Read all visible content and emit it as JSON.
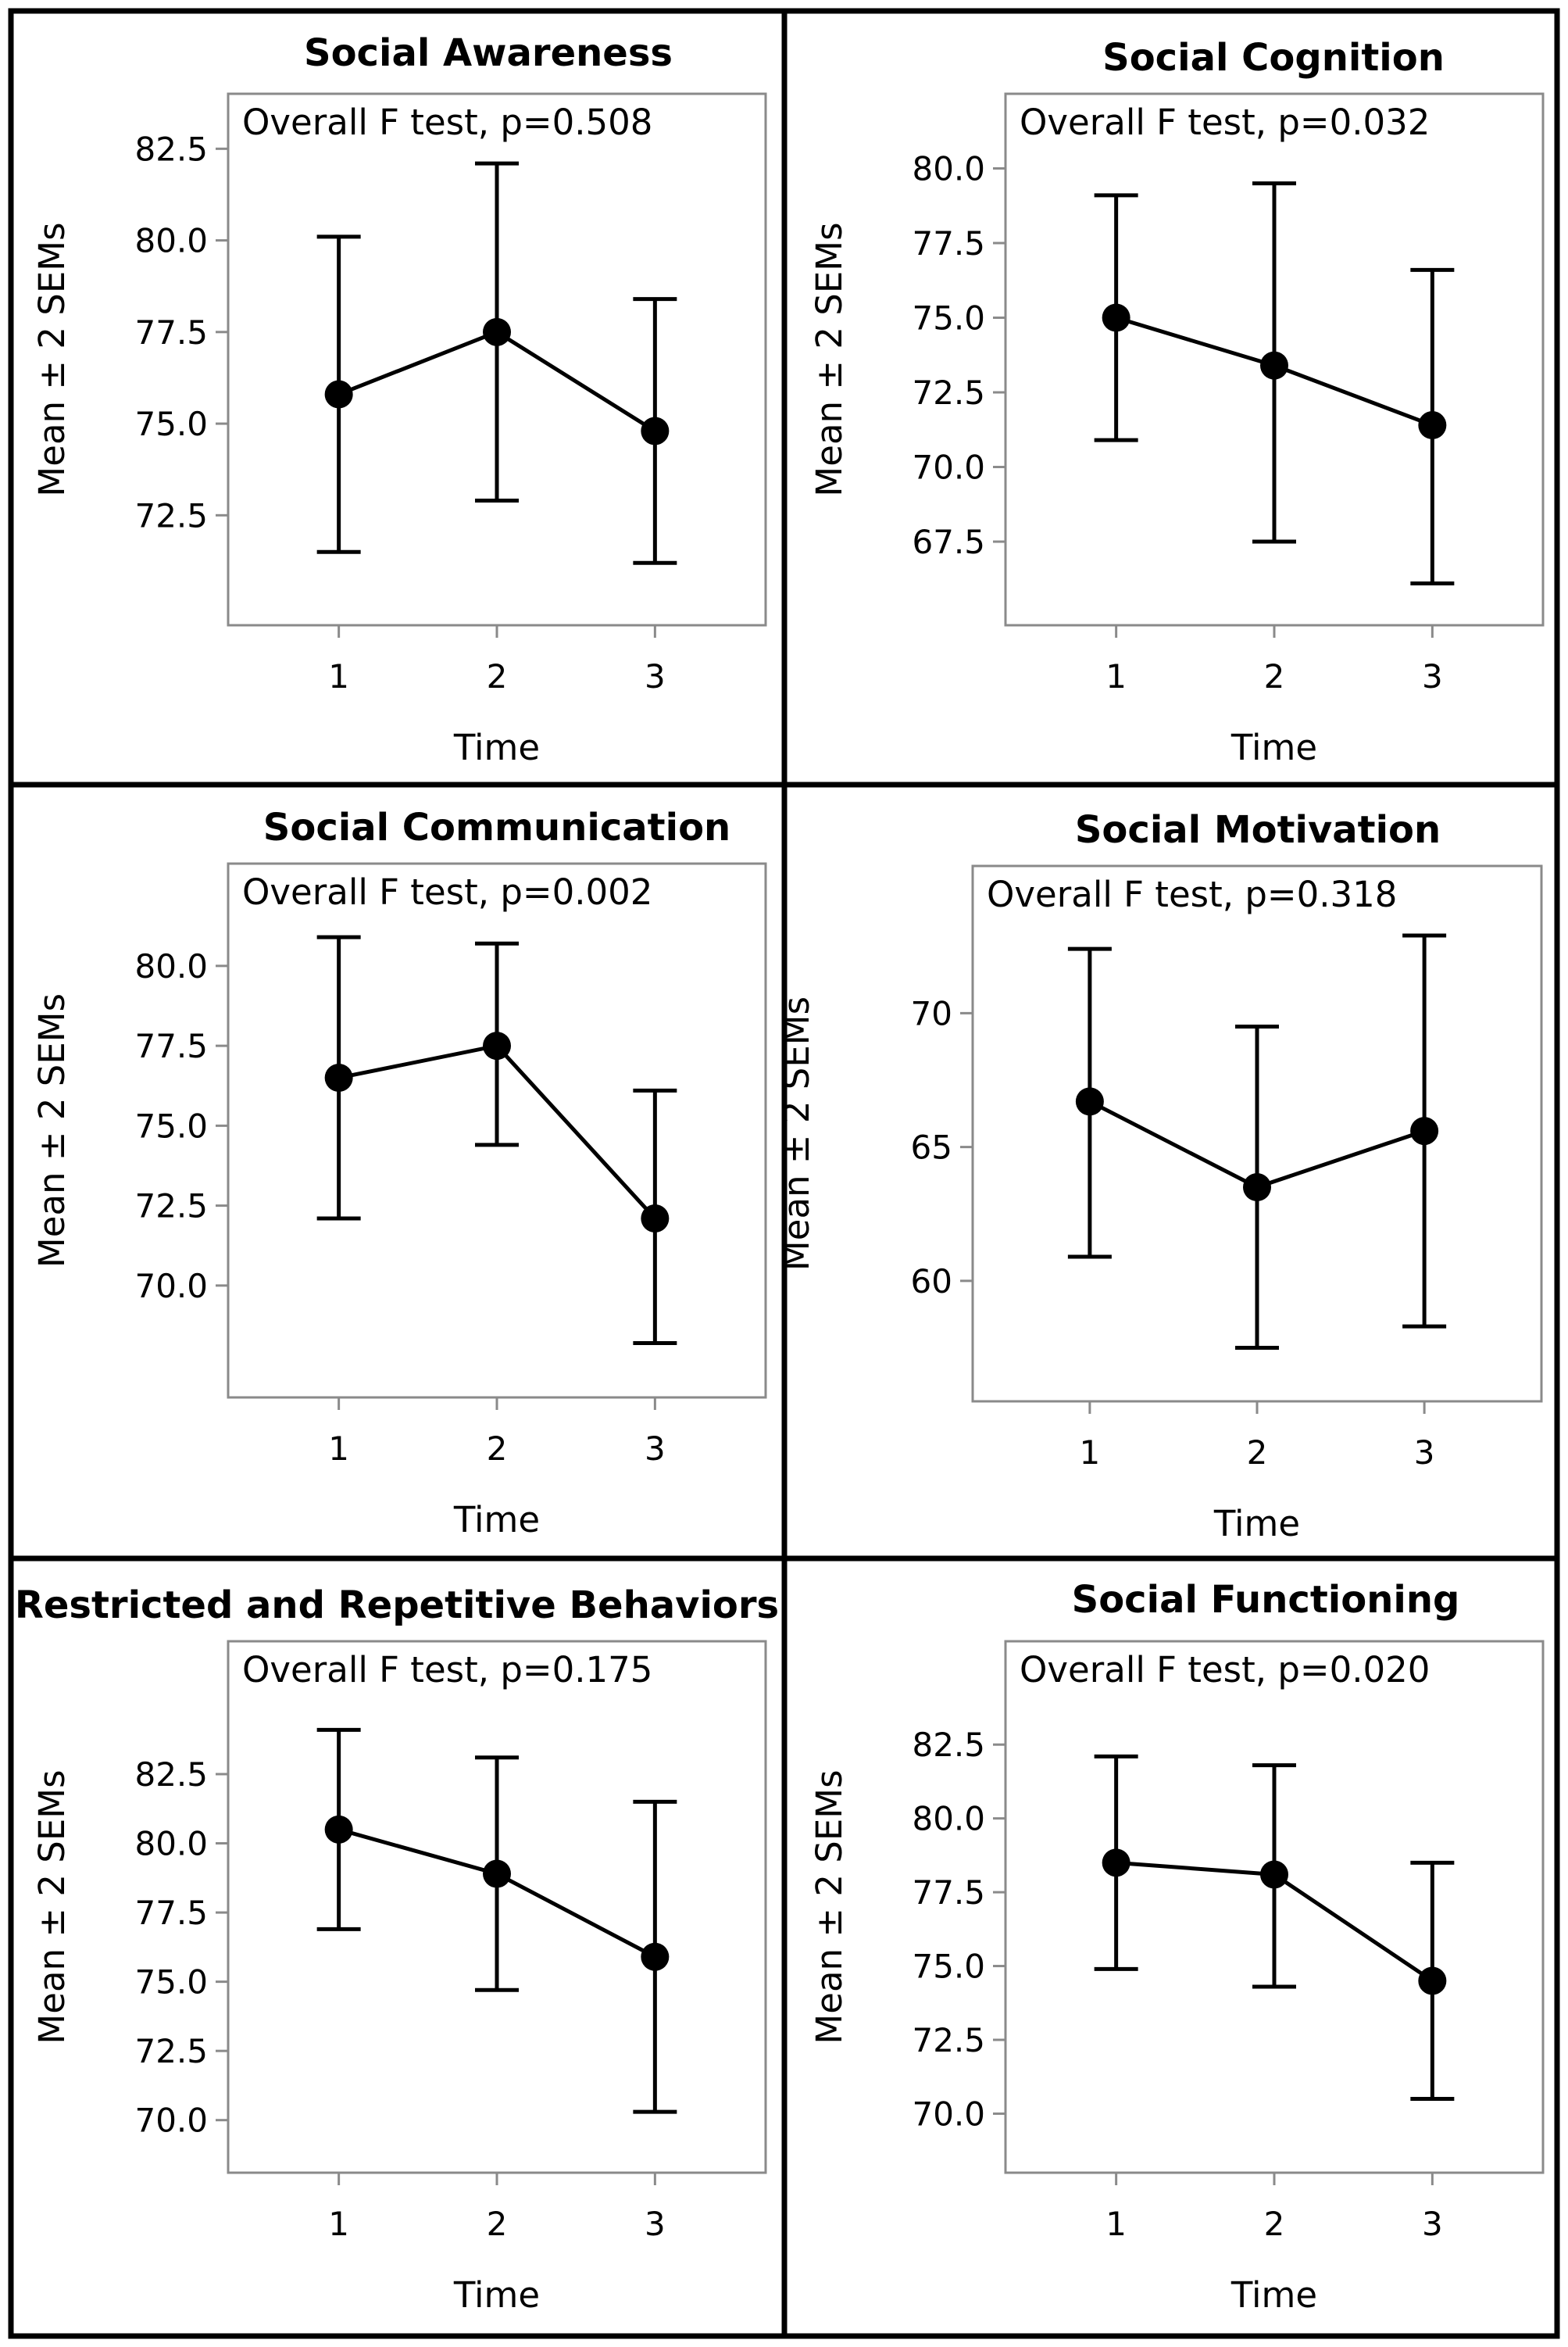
{
  "chart_data": [
    {
      "type": "line",
      "title": "Social Awareness",
      "annotation": "Overall F test, p=0.508",
      "xlabel": "Time",
      "ylabel": "Mean ± 2 SEMs",
      "x": [
        1,
        2,
        3
      ],
      "x_tick_labels": [
        "1",
        "2",
        "3"
      ],
      "xlim": [
        0.3,
        3.7
      ],
      "y_ticks": [
        72.5,
        75.0,
        77.5,
        80.0,
        82.5
      ],
      "y_tick_labels": [
        "72.5",
        "75.0",
        "77.5",
        "80.0",
        "82.5"
      ],
      "ylim": [
        69.5,
        84.0
      ],
      "values": [
        75.8,
        77.5,
        74.8
      ],
      "lower": [
        71.5,
        72.9,
        71.2
      ],
      "upper": [
        80.1,
        82.1,
        78.4
      ]
    },
    {
      "type": "line",
      "title": "Social Cognition",
      "annotation": "Overall F test, p=0.032",
      "xlabel": "Time",
      "ylabel": "Mean ± 2 SEMs",
      "x": [
        1,
        2,
        3
      ],
      "x_tick_labels": [
        "1",
        "2",
        "3"
      ],
      "xlim": [
        0.3,
        3.7
      ],
      "y_ticks": [
        67.5,
        70.0,
        72.5,
        75.0,
        77.5,
        80.0
      ],
      "y_tick_labels": [
        "67.5",
        "70.0",
        "72.5",
        "75.0",
        "77.5",
        "80.0"
      ],
      "ylim": [
        64.7,
        82.5
      ],
      "values": [
        75.0,
        73.4,
        71.4
      ],
      "lower": [
        70.9,
        67.5,
        66.1
      ],
      "upper": [
        79.1,
        79.5,
        76.6
      ]
    },
    {
      "type": "line",
      "title": "Social Communication",
      "annotation": "Overall F test, p=0.002",
      "xlabel": "Time",
      "ylabel": "Mean ± 2 SEMs",
      "x": [
        1,
        2,
        3
      ],
      "x_tick_labels": [
        "1",
        "2",
        "3"
      ],
      "xlim": [
        0.3,
        3.7
      ],
      "y_ticks": [
        70.0,
        72.5,
        75.0,
        77.5,
        80.0
      ],
      "y_tick_labels": [
        "70.0",
        "72.5",
        "75.0",
        "77.5",
        "80.0"
      ],
      "ylim": [
        66.5,
        83.2
      ],
      "values": [
        76.5,
        77.5,
        72.1
      ],
      "lower": [
        72.1,
        74.4,
        68.2
      ],
      "upper": [
        80.9,
        80.7,
        76.1
      ]
    },
    {
      "type": "line",
      "title": "Social Motivation",
      "annotation": "Overall F test, p=0.318",
      "xlabel": "Time",
      "ylabel": "Mean ± 2 SEMs",
      "x": [
        1,
        2,
        3
      ],
      "x_tick_labels": [
        "1",
        "2",
        "3"
      ],
      "xlim": [
        0.3,
        3.7
      ],
      "y_ticks": [
        60,
        65,
        70
      ],
      "y_tick_labels": [
        "60",
        "65",
        "70"
      ],
      "ylim": [
        55.5,
        75.5
      ],
      "values": [
        66.7,
        63.5,
        65.6
      ],
      "lower": [
        60.9,
        57.5,
        58.3
      ],
      "upper": [
        72.4,
        69.5,
        72.9
      ]
    },
    {
      "type": "line",
      "title": "Restricted and Repetitive Behaviors",
      "annotation": "Overall F test, p=0.175",
      "xlabel": "Time",
      "ylabel": "Mean ± 2 SEMs",
      "x": [
        1,
        2,
        3
      ],
      "x_tick_labels": [
        "1",
        "2",
        "3"
      ],
      "xlim": [
        0.3,
        3.7
      ],
      "y_ticks": [
        70.0,
        72.5,
        75.0,
        77.5,
        80.0,
        82.5
      ],
      "y_tick_labels": [
        "70.0",
        "72.5",
        "75.0",
        "77.5",
        "80.0",
        "82.5"
      ],
      "ylim": [
        68.1,
        87.3
      ],
      "values": [
        80.5,
        78.9,
        75.9
      ],
      "lower": [
        76.9,
        74.7,
        70.3
      ],
      "upper": [
        84.1,
        83.1,
        81.5
      ]
    },
    {
      "type": "line",
      "title": "Social Functioning",
      "annotation": "Overall F test, p=0.020",
      "xlabel": "Time",
      "ylabel": "Mean ± 2 SEMs",
      "x": [
        1,
        2,
        3
      ],
      "x_tick_labels": [
        "1",
        "2",
        "3"
      ],
      "xlim": [
        0.3,
        3.7
      ],
      "y_ticks": [
        70.0,
        72.5,
        75.0,
        77.5,
        80.0,
        82.5
      ],
      "y_tick_labels": [
        "70.0",
        "72.5",
        "75.0",
        "77.5",
        "80.0",
        "82.5"
      ],
      "ylim": [
        68.0,
        86.0
      ],
      "values": [
        78.5,
        78.1,
        74.5
      ],
      "lower": [
        74.9,
        74.3,
        70.5
      ],
      "upper": [
        82.1,
        81.8,
        78.5
      ]
    }
  ]
}
